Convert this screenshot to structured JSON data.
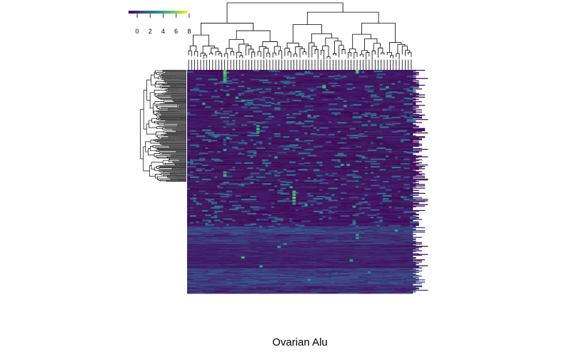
{
  "chart_data": {
    "type": "heatmap",
    "title": "Ovarian Alu",
    "xlabel": "",
    "ylabel": "",
    "colormap": "viridis",
    "color_key": {
      "range": [
        0,
        9
      ],
      "ticks": [
        "0",
        "2",
        "4",
        "6",
        "8"
      ],
      "colors": [
        "#440154",
        "#3b528b",
        "#21908c",
        "#5dc863",
        "#fde725"
      ],
      "placement": "top-left"
    },
    "background_value": 0.6,
    "n_columns": 75,
    "n_rows": 300,
    "column_dendrogram": true,
    "row_dendrogram": true,
    "row_blocks": [
      {
        "rows": [
          0,
          210
        ],
        "base": 0.6
      },
      {
        "rows": [
          210,
          220
        ],
        "base": 1.8
      },
      {
        "rows": [
          220,
          234
        ],
        "base": 1.4
      },
      {
        "rows": [
          234,
          252
        ],
        "base": 1.0
      },
      {
        "rows": [
          252,
          266
        ],
        "base": 0.9
      },
      {
        "rows": [
          266,
          290
        ],
        "base": 1.7
      },
      {
        "rows": [
          290,
          300
        ],
        "base": 1.2
      }
    ],
    "highlights": [
      {
        "col": 12,
        "row": 0,
        "value": 6
      },
      {
        "col": 12,
        "row": 3,
        "value": 7
      },
      {
        "col": 12,
        "row": 6,
        "value": 6
      },
      {
        "col": 12,
        "row": 9,
        "value": 5
      },
      {
        "col": 12,
        "row": 12,
        "value": 6
      },
      {
        "col": 12,
        "row": 15,
        "value": 5
      },
      {
        "col": 56,
        "row": 0,
        "value": 7
      },
      {
        "col": 56,
        "row": 2,
        "value": 6
      },
      {
        "col": 45,
        "row": 20,
        "value": 5
      },
      {
        "col": 45,
        "row": 22,
        "value": 6
      },
      {
        "col": 66,
        "row": 22,
        "value": 5
      },
      {
        "col": 13,
        "row": 32,
        "value": 5
      },
      {
        "col": 16,
        "row": 36,
        "value": 5
      },
      {
        "col": 18,
        "row": 40,
        "value": 5
      },
      {
        "col": 5,
        "row": 44,
        "value": 5
      },
      {
        "col": 52,
        "row": 47,
        "value": 5
      },
      {
        "col": 40,
        "row": 60,
        "value": 5
      },
      {
        "col": 23,
        "row": 74,
        "value": 5
      },
      {
        "col": 23,
        "row": 78,
        "value": 6
      },
      {
        "col": 23,
        "row": 82,
        "value": 5
      },
      {
        "col": 9,
        "row": 88,
        "value": 4
      },
      {
        "col": 13,
        "row": 90,
        "value": 5
      },
      {
        "col": 36,
        "row": 92,
        "value": 5
      },
      {
        "col": 12,
        "row": 106,
        "value": 5
      },
      {
        "col": 22,
        "row": 110,
        "value": 4
      },
      {
        "col": 29,
        "row": 116,
        "value": 5
      },
      {
        "col": 58,
        "row": 116,
        "value": 4
      },
      {
        "col": 51,
        "row": 126,
        "value": 5
      },
      {
        "col": 53,
        "row": 126,
        "value": 5
      },
      {
        "col": 12,
        "row": 136,
        "value": 5
      },
      {
        "col": 12,
        "row": 140,
        "value": 6
      },
      {
        "col": 21,
        "row": 150,
        "value": 4
      },
      {
        "col": 34,
        "row": 156,
        "value": 5
      },
      {
        "col": 35,
        "row": 162,
        "value": 6
      },
      {
        "col": 35,
        "row": 166,
        "value": 6
      },
      {
        "col": 35,
        "row": 170,
        "value": 7
      },
      {
        "col": 35,
        "row": 174,
        "value": 6
      },
      {
        "col": 35,
        "row": 178,
        "value": 5
      },
      {
        "col": 39,
        "row": 180,
        "value": 5
      },
      {
        "col": 55,
        "row": 182,
        "value": 5
      },
      {
        "col": 44,
        "row": 190,
        "value": 4
      },
      {
        "col": 55,
        "row": 204,
        "value": 4
      },
      {
        "col": 30,
        "row": 236,
        "value": 5
      },
      {
        "col": 56,
        "row": 220,
        "value": 5
      },
      {
        "col": 56,
        "row": 224,
        "value": 5
      },
      {
        "col": 69,
        "row": 214,
        "value": 5
      },
      {
        "col": 18,
        "row": 250,
        "value": 6
      },
      {
        "col": 54,
        "row": 254,
        "value": 5
      },
      {
        "col": 24,
        "row": 262,
        "value": 5
      },
      {
        "col": 32,
        "row": 232,
        "value": 4
      },
      {
        "col": 60,
        "row": 270,
        "value": 4
      },
      {
        "col": 40,
        "row": 280,
        "value": 4
      }
    ]
  }
}
